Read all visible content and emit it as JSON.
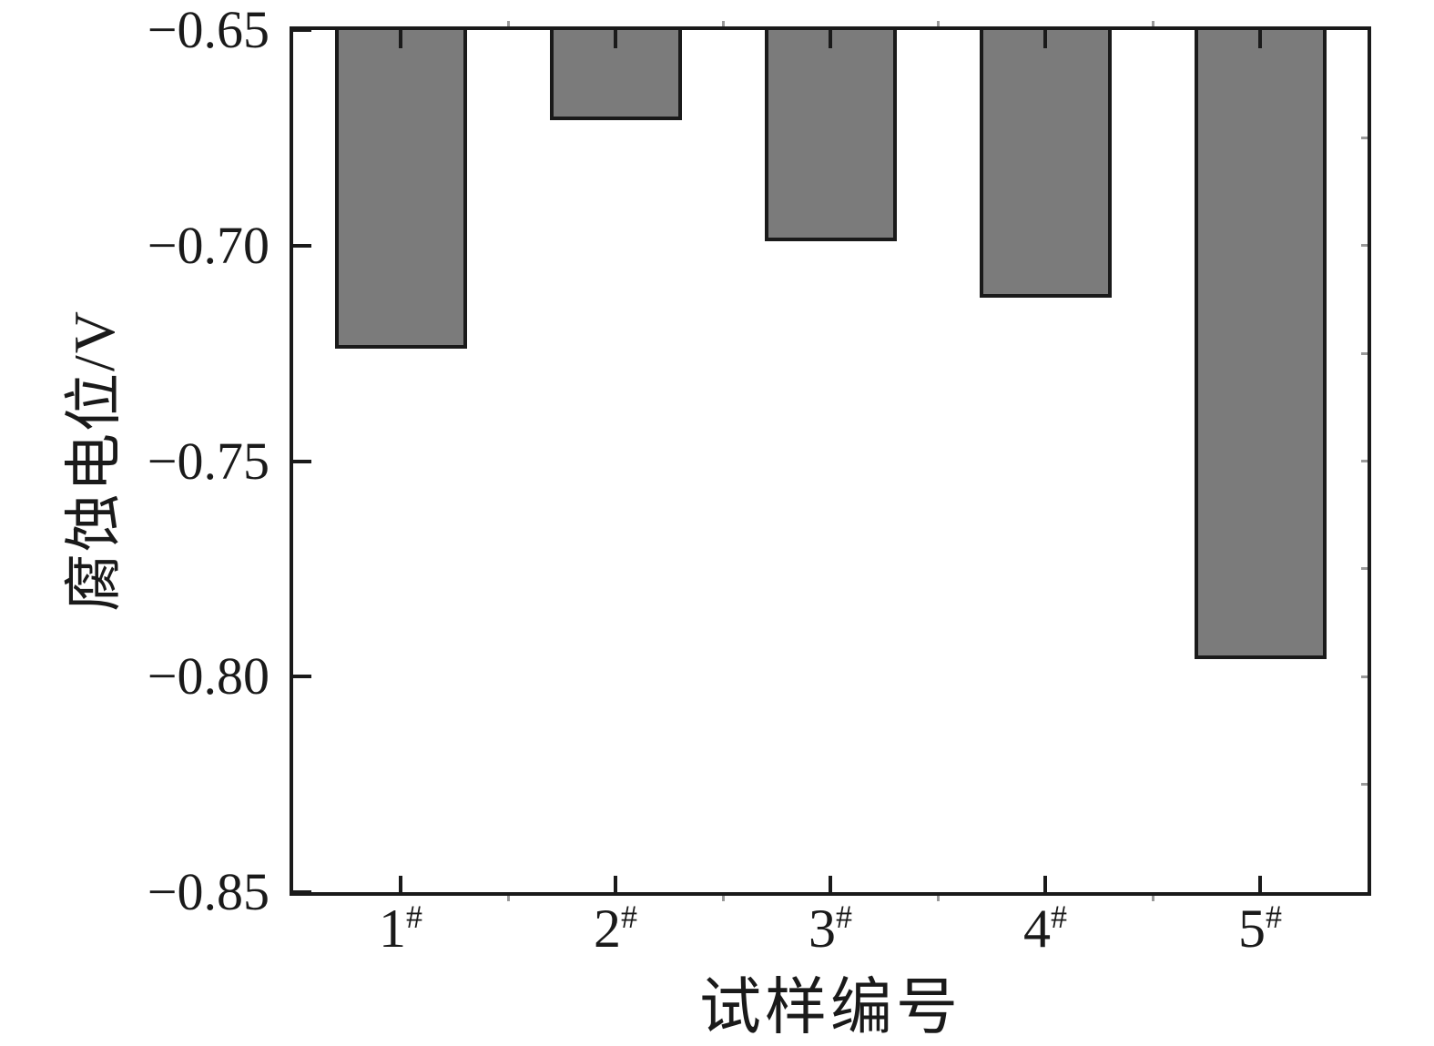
{
  "chart_data": {
    "type": "bar",
    "title": "",
    "categories": [
      "1",
      "2",
      "3",
      "4",
      "5"
    ],
    "category_suffix": "#",
    "values": [
      -0.724,
      -0.671,
      -0.699,
      -0.712,
      -0.796
    ],
    "xlabel": "试样编号",
    "ylabel": "腐蚀电位/V",
    "ylim": [
      -0.85,
      -0.65
    ],
    "bars_anchored_at": -0.65,
    "y_ticks": [
      -0.65,
      -0.7,
      -0.75,
      -0.8,
      -0.85
    ],
    "y_tick_labels": [
      "−0.65",
      "−0.70",
      "−0.75",
      "−0.80",
      "−0.85"
    ],
    "y_minor_step": 0.025,
    "grid": false,
    "legend": null,
    "tick_direction": "in",
    "colors": {
      "bar_fill": "#7b7b7b",
      "bar_edge": "#1a1a1a",
      "axis": "#1a1a1a",
      "minor_tick": "#9a9a9a",
      "background": "#ffffff",
      "text": "#1a1a1a"
    }
  }
}
